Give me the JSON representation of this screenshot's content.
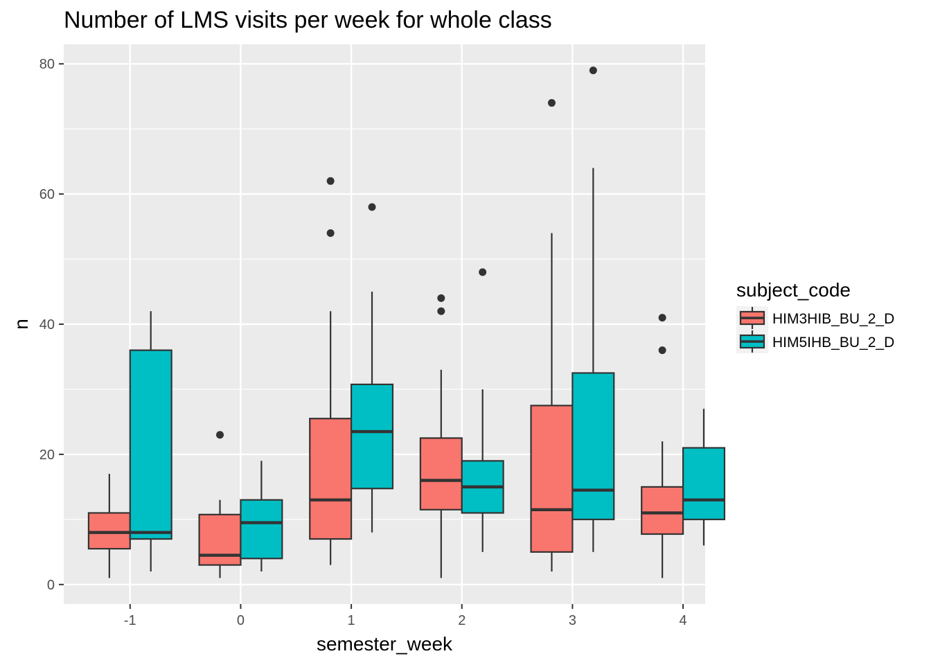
{
  "chart_data": {
    "type": "boxplot",
    "title": "Number of LMS visits per week for whole class",
    "xlabel": "semester_week",
    "ylabel": "n",
    "categories": [
      "-1",
      "0",
      "1",
      "2",
      "3",
      "4"
    ],
    "ylim": [
      -3,
      83
    ],
    "yticks": [
      0,
      20,
      40,
      60,
      80
    ],
    "grid": true,
    "legend": {
      "title": "subject_code",
      "position": "right"
    },
    "series": [
      {
        "name": "HIM3HIB_BU_2_D",
        "color": "#F8766D",
        "boxes": [
          {
            "week": "-1",
            "lower": 1,
            "q1": 5.5,
            "median": 8,
            "q3": 11,
            "upper": 17,
            "outliers": []
          },
          {
            "week": "0",
            "lower": 1,
            "q1": 3,
            "median": 4.5,
            "q3": 10.75,
            "upper": 13,
            "outliers": [
              23
            ]
          },
          {
            "week": "1",
            "lower": 3,
            "q1": 7,
            "median": 13,
            "q3": 25.5,
            "upper": 42,
            "outliers": [
              54,
              62
            ]
          },
          {
            "week": "2",
            "lower": 1,
            "q1": 11.5,
            "median": 16,
            "q3": 22.5,
            "upper": 33,
            "outliers": [
              42,
              44
            ]
          },
          {
            "week": "3",
            "lower": 2,
            "q1": 5,
            "median": 11.5,
            "q3": 27.5,
            "upper": 54,
            "outliers": [
              74
            ]
          },
          {
            "week": "4",
            "lower": 1,
            "q1": 7.75,
            "median": 11,
            "q3": 15,
            "upper": 22,
            "outliers": [
              36,
              41
            ]
          }
        ]
      },
      {
        "name": "HIM5IHB_BU_2_D",
        "color": "#00BFC4",
        "boxes": [
          {
            "week": "-1",
            "lower": 2,
            "q1": 7,
            "median": 8,
            "q3": 36,
            "upper": 42,
            "outliers": []
          },
          {
            "week": "0",
            "lower": 2,
            "q1": 4,
            "median": 9.5,
            "q3": 13,
            "upper": 19,
            "outliers": []
          },
          {
            "week": "1",
            "lower": 8,
            "q1": 14.75,
            "median": 23.5,
            "q3": 30.75,
            "upper": 45,
            "outliers": [
              58
            ]
          },
          {
            "week": "2",
            "lower": 5,
            "q1": 11,
            "median": 15,
            "q3": 19,
            "upper": 30,
            "outliers": [
              48
            ]
          },
          {
            "week": "3",
            "lower": 5,
            "q1": 10,
            "median": 14.5,
            "q3": 32.5,
            "upper": 64,
            "outliers": [
              79
            ]
          },
          {
            "week": "4",
            "lower": 6,
            "q1": 10,
            "median": 13,
            "q3": 21,
            "upper": 27,
            "outliers": []
          }
        ]
      }
    ]
  }
}
